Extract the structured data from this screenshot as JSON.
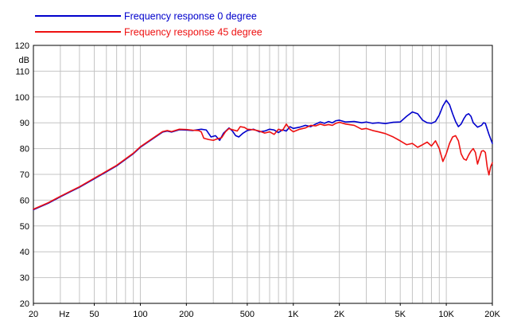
{
  "chart_data": {
    "type": "line",
    "title": "",
    "xlabel": "Hz",
    "ylabel": "dB",
    "x_scale": "log",
    "xlim": [
      20,
      20000
    ],
    "ylim": [
      20,
      120
    ],
    "grid": true,
    "legend_position": "top-left",
    "x_ticks": [
      {
        "value": 20,
        "label": "20"
      },
      {
        "value": 50,
        "label": "50"
      },
      {
        "value": 100,
        "label": "100"
      },
      {
        "value": 200,
        "label": "200"
      },
      {
        "value": 500,
        "label": "500"
      },
      {
        "value": 1000,
        "label": "1K"
      },
      {
        "value": 2000,
        "label": "2K"
      },
      {
        "value": 5000,
        "label": "5K"
      },
      {
        "value": 10000,
        "label": "10K"
      },
      {
        "value": 20000,
        "label": "20K"
      }
    ],
    "y_ticks": [
      20,
      30,
      40,
      50,
      60,
      70,
      80,
      90,
      100,
      110,
      120
    ],
    "series": [
      {
        "name": "Frequency response 0 degree",
        "color": "#0000cc",
        "points": [
          [
            20,
            56.3
          ],
          [
            25,
            58.8
          ],
          [
            30,
            61.3
          ],
          [
            35,
            63.3
          ],
          [
            40,
            65.0
          ],
          [
            50,
            68.3
          ],
          [
            60,
            71.0
          ],
          [
            70,
            73.3
          ],
          [
            80,
            75.8
          ],
          [
            90,
            78.0
          ],
          [
            100,
            80.5
          ],
          [
            120,
            83.7
          ],
          [
            140,
            86.4
          ],
          [
            150,
            86.8
          ],
          [
            160,
            86.4
          ],
          [
            180,
            87.3
          ],
          [
            200,
            87.2
          ],
          [
            220,
            87.0
          ],
          [
            250,
            87.5
          ],
          [
            270,
            87.2
          ],
          [
            290,
            84.5
          ],
          [
            310,
            85.0
          ],
          [
            330,
            83.2
          ],
          [
            350,
            86.0
          ],
          [
            380,
            88.0
          ],
          [
            400,
            86.8
          ],
          [
            420,
            85.0
          ],
          [
            440,
            84.5
          ],
          [
            470,
            86.0
          ],
          [
            500,
            87.0
          ],
          [
            550,
            87.5
          ],
          [
            600,
            86.5
          ],
          [
            650,
            86.8
          ],
          [
            700,
            87.5
          ],
          [
            750,
            87.2
          ],
          [
            800,
            86.2
          ],
          [
            850,
            87.3
          ],
          [
            900,
            86.8
          ],
          [
            950,
            88.5
          ],
          [
            1000,
            87.8
          ],
          [
            1100,
            88.3
          ],
          [
            1200,
            89.0
          ],
          [
            1300,
            88.5
          ],
          [
            1400,
            89.5
          ],
          [
            1500,
            90.3
          ],
          [
            1600,
            89.8
          ],
          [
            1700,
            90.5
          ],
          [
            1800,
            90.0
          ],
          [
            1900,
            90.8
          ],
          [
            2000,
            91.0
          ],
          [
            2200,
            90.3
          ],
          [
            2500,
            90.5
          ],
          [
            2800,
            90.0
          ],
          [
            3000,
            90.3
          ],
          [
            3300,
            89.8
          ],
          [
            3600,
            90.0
          ],
          [
            4000,
            89.7
          ],
          [
            4500,
            90.2
          ],
          [
            5000,
            90.3
          ],
          [
            5500,
            92.5
          ],
          [
            6000,
            94.2
          ],
          [
            6500,
            93.5
          ],
          [
            7000,
            91.0
          ],
          [
            7500,
            90.0
          ],
          [
            8000,
            89.8
          ],
          [
            8500,
            90.5
          ],
          [
            9000,
            93.0
          ],
          [
            9500,
            96.5
          ],
          [
            10000,
            98.7
          ],
          [
            10500,
            97.0
          ],
          [
            11000,
            93.5
          ],
          [
            11500,
            90.5
          ],
          [
            12000,
            88.5
          ],
          [
            12500,
            89.5
          ],
          [
            13000,
            91.5
          ],
          [
            13500,
            93.0
          ],
          [
            14000,
            93.5
          ],
          [
            14500,
            92.5
          ],
          [
            15000,
            90.0
          ],
          [
            16000,
            88.3
          ],
          [
            17000,
            89.0
          ],
          [
            17500,
            90.0
          ],
          [
            18000,
            89.8
          ],
          [
            19000,
            85.5
          ],
          [
            20000,
            82.0
          ]
        ]
      },
      {
        "name": "Frequency response 45 degree",
        "color": "#ee1111",
        "points": [
          [
            20,
            56.5
          ],
          [
            25,
            59.0
          ],
          [
            30,
            61.5
          ],
          [
            35,
            63.5
          ],
          [
            40,
            65.2
          ],
          [
            50,
            68.5
          ],
          [
            60,
            71.2
          ],
          [
            70,
            73.5
          ],
          [
            80,
            76.0
          ],
          [
            90,
            78.2
          ],
          [
            100,
            80.7
          ],
          [
            120,
            83.9
          ],
          [
            140,
            86.6
          ],
          [
            150,
            87.0
          ],
          [
            160,
            86.6
          ],
          [
            180,
            87.5
          ],
          [
            200,
            87.4
          ],
          [
            220,
            87.1
          ],
          [
            240,
            87.0
          ],
          [
            250,
            86.5
          ],
          [
            260,
            84.0
          ],
          [
            280,
            83.5
          ],
          [
            300,
            83.2
          ],
          [
            320,
            83.8
          ],
          [
            340,
            84.2
          ],
          [
            360,
            86.5
          ],
          [
            380,
            87.8
          ],
          [
            400,
            87.3
          ],
          [
            430,
            86.8
          ],
          [
            450,
            88.5
          ],
          [
            480,
            88.2
          ],
          [
            500,
            87.5
          ],
          [
            550,
            87.3
          ],
          [
            600,
            86.8
          ],
          [
            650,
            86.0
          ],
          [
            700,
            86.5
          ],
          [
            750,
            85.5
          ],
          [
            800,
            87.5
          ],
          [
            850,
            87.0
          ],
          [
            900,
            89.5
          ],
          [
            950,
            87.5
          ],
          [
            1000,
            86.5
          ],
          [
            1100,
            87.5
          ],
          [
            1200,
            88.0
          ],
          [
            1300,
            89.0
          ],
          [
            1400,
            88.8
          ],
          [
            1500,
            89.5
          ],
          [
            1600,
            89.0
          ],
          [
            1700,
            89.3
          ],
          [
            1800,
            89.0
          ],
          [
            1900,
            89.8
          ],
          [
            2000,
            90.2
          ],
          [
            2200,
            89.5
          ],
          [
            2500,
            89.0
          ],
          [
            2800,
            87.5
          ],
          [
            3000,
            87.8
          ],
          [
            3300,
            87.0
          ],
          [
            3600,
            86.5
          ],
          [
            4000,
            85.8
          ],
          [
            4500,
            84.5
          ],
          [
            5000,
            83.0
          ],
          [
            5500,
            81.5
          ],
          [
            6000,
            82.0
          ],
          [
            6500,
            80.5
          ],
          [
            7000,
            81.5
          ],
          [
            7500,
            82.5
          ],
          [
            8000,
            81.0
          ],
          [
            8500,
            83.0
          ],
          [
            9000,
            80.0
          ],
          [
            9500,
            75.0
          ],
          [
            10000,
            78.0
          ],
          [
            10500,
            82.0
          ],
          [
            11000,
            84.5
          ],
          [
            11500,
            85.0
          ],
          [
            12000,
            83.0
          ],
          [
            12500,
            78.0
          ],
          [
            13000,
            76.0
          ],
          [
            13500,
            75.5
          ],
          [
            14000,
            77.5
          ],
          [
            14500,
            79.0
          ],
          [
            15000,
            80.0
          ],
          [
            15500,
            78.5
          ],
          [
            16000,
            74.0
          ],
          [
            17000,
            79.0
          ],
          [
            17500,
            79.2
          ],
          [
            18000,
            78.5
          ],
          [
            18500,
            73.0
          ],
          [
            19000,
            69.8
          ],
          [
            19500,
            73.0
          ],
          [
            20000,
            74.5
          ]
        ]
      }
    ]
  }
}
